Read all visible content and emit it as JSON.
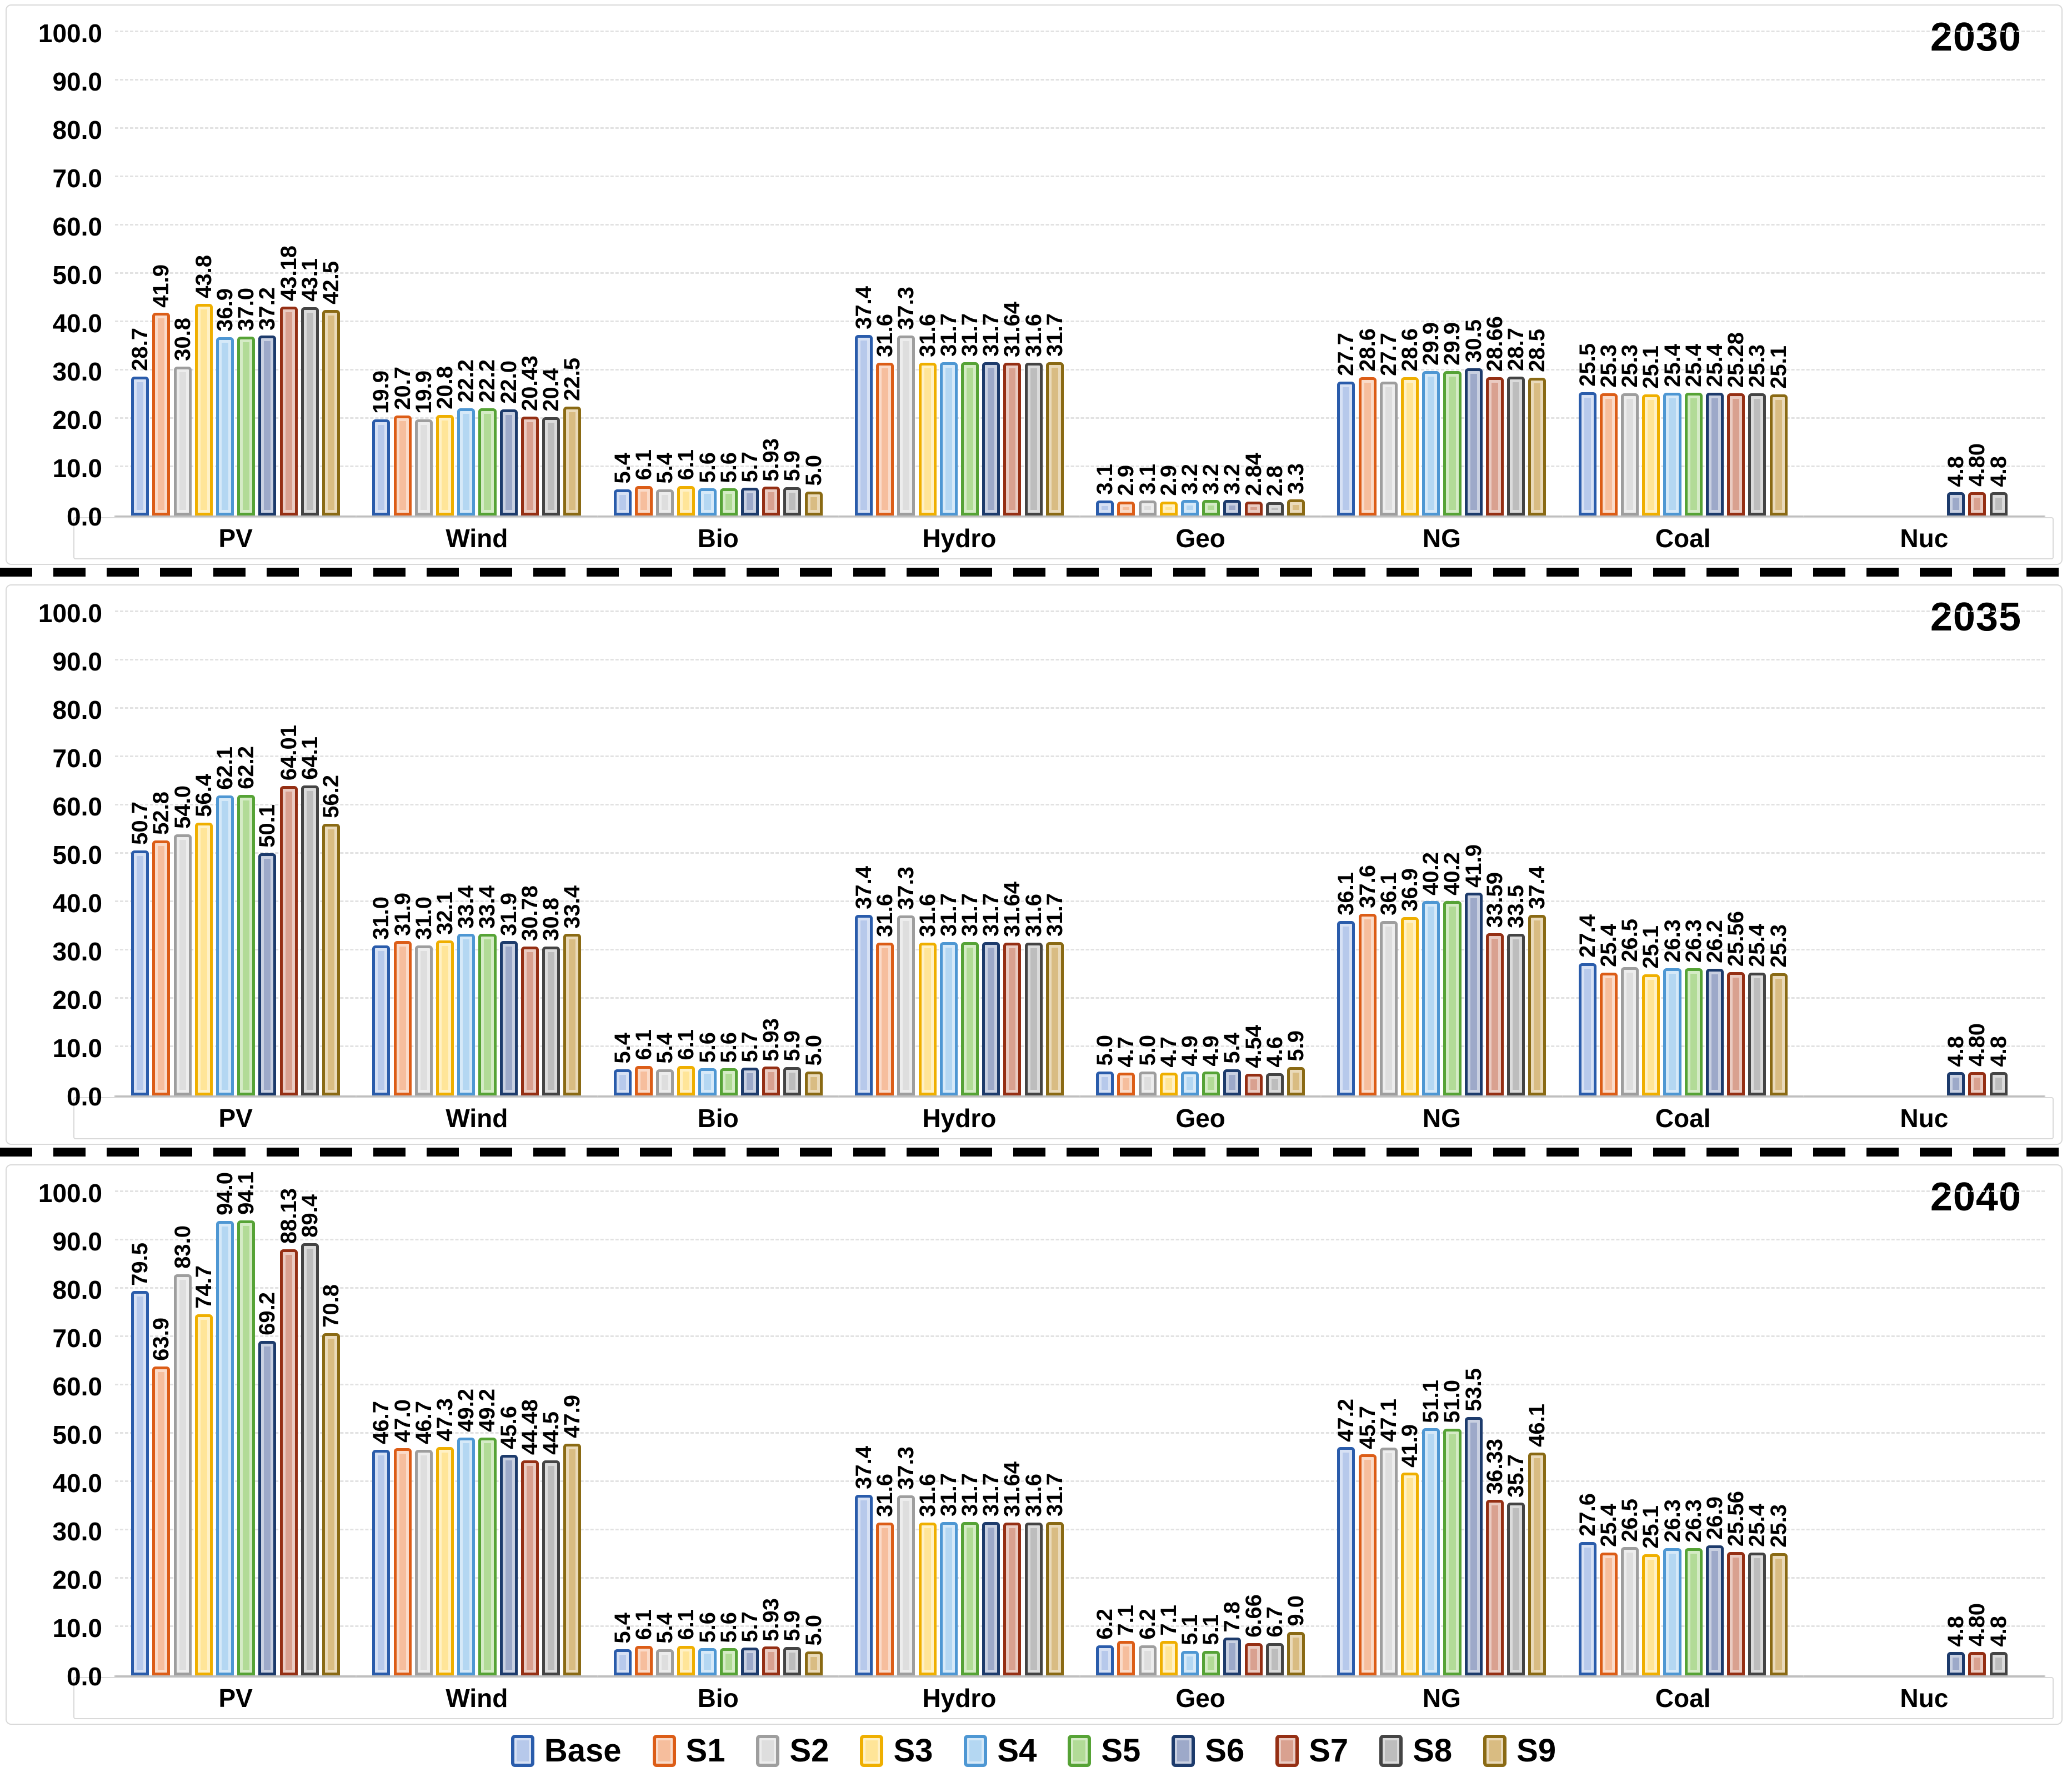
{
  "figure": {
    "y_tick_labels": [
      "0.0",
      "10.0",
      "20.0",
      "30.0",
      "40.0",
      "50.0",
      "60.0",
      "70.0",
      "80.0",
      "90.0",
      "100.0"
    ],
    "grid_color": "#e2e2e2",
    "frame_color": "#d9d9d9",
    "divider_color": "#000000"
  },
  "legend": {
    "items": [
      {
        "label": "Base",
        "border": "#2a5cab",
        "fill": "#b7c9eb"
      },
      {
        "label": "S1",
        "border": "#dc5d17",
        "fill": "#f6be9d"
      },
      {
        "label": "S2",
        "border": "#9e9e9e",
        "fill": "#dedede"
      },
      {
        "label": "S3",
        "border": "#efaf00",
        "fill": "#ffe598"
      },
      {
        "label": "S4",
        "border": "#4e97d3",
        "fill": "#b4d7f2"
      },
      {
        "label": "S5",
        "border": "#56a336",
        "fill": "#b2db97"
      },
      {
        "label": "S6",
        "border": "#1d3b6c",
        "fill": "#9da9c9"
      },
      {
        "label": "S7",
        "border": "#952f14",
        "fill": "#d9a190"
      },
      {
        "label": "S8",
        "border": "#444444",
        "fill": "#bdbdbd"
      },
      {
        "label": "S9",
        "border": "#8a6a14",
        "fill": "#d9bc82"
      }
    ]
  },
  "chart_data": [
    {
      "type": "bar",
      "title": "2030",
      "categories": [
        "PV",
        "Wind",
        "Bio",
        "Hydro",
        "Geo",
        "NG",
        "Coal",
        "Nuc"
      ],
      "xlabel": "",
      "ylabel": "",
      "ylim": [
        0,
        100
      ],
      "y_tick_step": 10,
      "grid": "dashed-horizontal",
      "legend_position": "bottom",
      "series": [
        {
          "name": "Base",
          "values": [
            "28.7",
            "19.9",
            "5.4",
            "37.4",
            "3.1",
            "27.7",
            "25.5",
            null
          ]
        },
        {
          "name": "S1",
          "values": [
            "41.9",
            "20.7",
            "6.1",
            "31.6",
            "2.9",
            "28.6",
            "25.3",
            null
          ]
        },
        {
          "name": "S2",
          "values": [
            "30.8",
            "19.9",
            "5.4",
            "37.3",
            "3.1",
            "27.7",
            "25.3",
            null
          ]
        },
        {
          "name": "S3",
          "values": [
            "43.8",
            "20.8",
            "6.1",
            "31.6",
            "2.9",
            "28.6",
            "25.1",
            null
          ]
        },
        {
          "name": "S4",
          "values": [
            "36.9",
            "22.2",
            "5.6",
            "31.7",
            "3.2",
            "29.9",
            "25.4",
            null
          ]
        },
        {
          "name": "S5",
          "values": [
            "37.0",
            "22.2",
            "5.6",
            "31.7",
            "3.2",
            "29.9",
            "25.4",
            null
          ]
        },
        {
          "name": "S6",
          "values": [
            "37.2",
            "22.0",
            "5.7",
            "31.7",
            "3.2",
            "30.5",
            "25.4",
            "4.8"
          ]
        },
        {
          "name": "S7",
          "values": [
            "43.18",
            "20.43",
            "5.93",
            "31.64",
            "2.84",
            "28.66",
            "25.28",
            "4.80"
          ]
        },
        {
          "name": "S8",
          "values": [
            "43.1",
            "20.4",
            "5.9",
            "31.6",
            "2.8",
            "28.7",
            "25.3",
            "4.8"
          ]
        },
        {
          "name": "S9",
          "values": [
            "42.5",
            "22.5",
            "5.0",
            "31.7",
            "3.3",
            "28.5",
            "25.1",
            null
          ]
        }
      ]
    },
    {
      "type": "bar",
      "title": "2035",
      "categories": [
        "PV",
        "Wind",
        "Bio",
        "Hydro",
        "Geo",
        "NG",
        "Coal",
        "Nuc"
      ],
      "xlabel": "",
      "ylabel": "",
      "ylim": [
        0,
        100
      ],
      "y_tick_step": 10,
      "grid": "dashed-horizontal",
      "legend_position": "bottom",
      "series": [
        {
          "name": "Base",
          "values": [
            "50.7",
            "31.0",
            "5.4",
            "37.4",
            "5.0",
            "36.1",
            "27.4",
            null
          ]
        },
        {
          "name": "S1",
          "values": [
            "52.8",
            "31.9",
            "6.1",
            "31.6",
            "4.7",
            "37.6",
            "25.4",
            null
          ]
        },
        {
          "name": "S2",
          "values": [
            "54.0",
            "31.0",
            "5.4",
            "37.3",
            "5.0",
            "36.1",
            "26.5",
            null
          ]
        },
        {
          "name": "S3",
          "values": [
            "56.4",
            "32.1",
            "6.1",
            "31.6",
            "4.7",
            "36.9",
            "25.1",
            null
          ]
        },
        {
          "name": "S4",
          "values": [
            "62.1",
            "33.4",
            "5.6",
            "31.7",
            "4.9",
            "40.2",
            "26.3",
            null
          ]
        },
        {
          "name": "S5",
          "values": [
            "62.2",
            "33.4",
            "5.6",
            "31.7",
            "4.9",
            "40.2",
            "26.3",
            null
          ]
        },
        {
          "name": "S6",
          "values": [
            "50.1",
            "31.9",
            "5.7",
            "31.7",
            "5.4",
            "41.9",
            "26.2",
            "4.8"
          ]
        },
        {
          "name": "S7",
          "values": [
            "64.01",
            "30.78",
            "5.93",
            "31.64",
            "4.54",
            "33.59",
            "25.56",
            "4.80"
          ]
        },
        {
          "name": "S8",
          "values": [
            "64.1",
            "30.8",
            "5.9",
            "31.6",
            "4.6",
            "33.5",
            "25.4",
            "4.8"
          ]
        },
        {
          "name": "S9",
          "values": [
            "56.2",
            "33.4",
            "5.0",
            "31.7",
            "5.9",
            "37.4",
            "25.3",
            null
          ]
        }
      ]
    },
    {
      "type": "bar",
      "title": "2040",
      "categories": [
        "PV",
        "Wind",
        "Bio",
        "Hydro",
        "Geo",
        "NG",
        "Coal",
        "Nuc"
      ],
      "xlabel": "",
      "ylabel": "",
      "ylim": [
        0,
        100
      ],
      "y_tick_step": 10,
      "grid": "dashed-horizontal",
      "legend_position": "bottom",
      "series": [
        {
          "name": "Base",
          "values": [
            "79.5",
            "46.7",
            "5.4",
            "37.4",
            "6.2",
            "47.2",
            "27.6",
            null
          ]
        },
        {
          "name": "S1",
          "values": [
            "63.9",
            "47.0",
            "6.1",
            "31.6",
            "7.1",
            "45.7",
            "25.4",
            null
          ]
        },
        {
          "name": "S2",
          "values": [
            "83.0",
            "46.7",
            "5.4",
            "37.3",
            "6.2",
            "47.1",
            "26.5",
            null
          ]
        },
        {
          "name": "S3",
          "values": [
            "74.7",
            "47.3",
            "6.1",
            "31.6",
            "7.1",
            "41.9",
            "25.1",
            null
          ]
        },
        {
          "name": "S4",
          "values": [
            "94.0",
            "49.2",
            "5.6",
            "31.7",
            "5.1",
            "51.1",
            "26.3",
            null
          ]
        },
        {
          "name": "S5",
          "values": [
            "94.1",
            "49.2",
            "5.6",
            "31.7",
            "5.1",
            "51.0",
            "26.3",
            null
          ]
        },
        {
          "name": "S6",
          "values": [
            "69.2",
            "45.6",
            "5.7",
            "31.7",
            "7.8",
            "53.5",
            "26.9",
            "4.8"
          ]
        },
        {
          "name": "S7",
          "values": [
            "88.13",
            "44.48",
            "5.93",
            "31.64",
            "6.66",
            "36.33",
            "25.56",
            "4.80"
          ]
        },
        {
          "name": "S8",
          "values": [
            "89.4",
            "44.5",
            "5.9",
            "31.6",
            "6.7",
            "35.7",
            "25.4",
            "4.8"
          ]
        },
        {
          "name": "S9",
          "values": [
            "70.8",
            "47.9",
            "5.0",
            "31.7",
            "9.0",
            "46.1",
            "25.3",
            null
          ]
        }
      ]
    }
  ]
}
